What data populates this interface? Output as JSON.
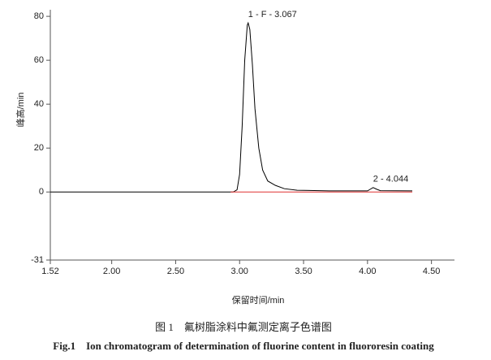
{
  "chart_data": {
    "type": "line",
    "xlabel": "保留时间/min",
    "ylabel": "峰高/min",
    "caption_cn": "图 1　氟树脂涂料中氟测定离子色谱图",
    "caption_en": "Fig.1　Ion chromatogram of determination of fluorine content in fluororesin coating",
    "xlim": [
      1.52,
      4.68
    ],
    "ylim": [
      -31,
      83
    ],
    "xticks": [
      {
        "value": 1.52,
        "label": "1.52"
      },
      {
        "value": 2,
        "label": "2.00"
      },
      {
        "value": 2.5,
        "label": "2.50"
      },
      {
        "value": 3,
        "label": "3.00"
      },
      {
        "value": 3.5,
        "label": "3.50"
      },
      {
        "value": 4,
        "label": "4.00"
      },
      {
        "value": 4.5,
        "label": "4.50"
      }
    ],
    "yticks": [
      -31,
      0,
      20,
      40,
      60,
      80
    ],
    "series": [
      {
        "color": "#000000",
        "x": [
          1.52,
          2.95,
          2.98,
          3.0,
          3.02,
          3.04,
          3.06,
          3.067,
          3.08,
          3.1,
          3.12,
          3.15,
          3.18,
          3.22,
          3.28,
          3.35,
          3.45,
          3.7,
          4.0,
          4.02,
          4.044,
          4.07,
          4.1,
          4.35
        ],
        "values": [
          0,
          0,
          1,
          8,
          30,
          60,
          76,
          77,
          74,
          58,
          38,
          20,
          10,
          5,
          3,
          1.5,
          0.8,
          0.5,
          0.5,
          1.2,
          2,
          1.3,
          0.6,
          0.5
        ]
      },
      {
        "color": "#e03030",
        "x": [
          2.93,
          4.35
        ],
        "values": [
          0,
          0
        ]
      }
    ],
    "annotations": [
      {
        "text": "1 - F - 3.067",
        "x": 3.067,
        "y": 77
      },
      {
        "text": "2 - 4.044",
        "x": 4.044,
        "y": 2
      }
    ]
  }
}
